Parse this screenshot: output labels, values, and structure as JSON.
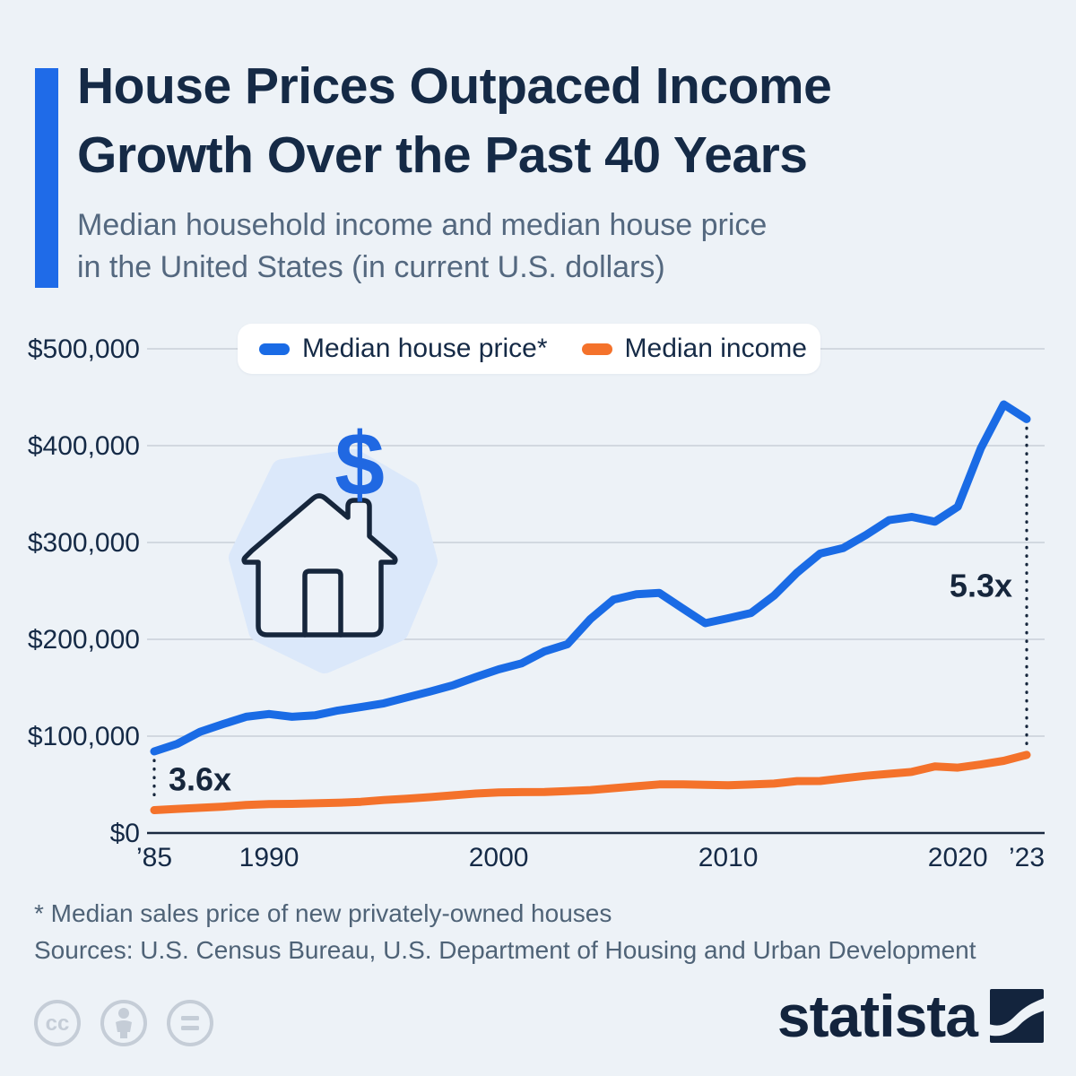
{
  "header": {
    "title_line1": "House Prices Outpaced Income",
    "title_line2": "Growth Over the Past 40 Years",
    "subtitle_line1": "Median household income and median house price",
    "subtitle_line2": "in the United States (in current U.S. dollars)"
  },
  "legend": {
    "items": [
      {
        "label": "Median house price*",
        "color": "#1a6be5"
      },
      {
        "label": "Median income",
        "color": "#f4722b"
      }
    ]
  },
  "decor": {
    "dollar_glyph": "$"
  },
  "chart_data": {
    "type": "line",
    "x": [
      1985,
      1986,
      1987,
      1988,
      1989,
      1990,
      1991,
      1992,
      1993,
      1994,
      1995,
      1996,
      1997,
      1998,
      1999,
      2000,
      2001,
      2002,
      2003,
      2004,
      2005,
      2006,
      2007,
      2008,
      2009,
      2010,
      2011,
      2012,
      2013,
      2014,
      2015,
      2016,
      2017,
      2018,
      2019,
      2020,
      2021,
      2022,
      2023
    ],
    "series": [
      {
        "name": "Median house price",
        "color": "#1a6be5",
        "values": [
          84300,
          92000,
          104500,
          112500,
          120000,
          122900,
          120000,
          121500,
          126500,
          130000,
          133900,
          140000,
          146000,
          152500,
          161000,
          169000,
          175200,
          187600,
          195000,
          221000,
          240900,
          246500,
          247900,
          232100,
          216700,
          221800,
          227200,
          245200,
          268900,
          288500,
          294200,
          307800,
          323100,
          326400,
          321500,
          336900,
          397100,
          442600,
          427400
        ]
      },
      {
        "name": "Median income",
        "color": "#f4722b",
        "values": [
          23620,
          24900,
          26060,
          27230,
          28910,
          29940,
          30130,
          30640,
          31240,
          32260,
          34080,
          35490,
          37010,
          38890,
          40700,
          41990,
          42230,
          42410,
          43320,
          44330,
          46330,
          48200,
          50230,
          50300,
          49780,
          49280,
          50050,
          51020,
          53590,
          53660,
          56520,
          59040,
          61140,
          63180,
          68700,
          67520,
          70780,
          74580,
          80610
        ]
      }
    ],
    "xlim": [
      1985,
      2023
    ],
    "ylim": [
      0,
      500000
    ],
    "y_step": 100000,
    "y_tick_labels": [
      "$0",
      "$100,000",
      "$200,000",
      "$300,000",
      "$400,000",
      "$500,000"
    ],
    "x_ticks": [
      {
        "year": 1985,
        "label": "’85"
      },
      {
        "year": 1990,
        "label": "1990"
      },
      {
        "year": 2000,
        "label": "2000"
      },
      {
        "year": 2010,
        "label": "2010"
      },
      {
        "year": 2020,
        "label": "2020"
      },
      {
        "year": 2023,
        "label": "’23"
      }
    ],
    "annotations": [
      {
        "year": 1985,
        "label": "3.6x",
        "text_side": "right"
      },
      {
        "year": 2023,
        "label": "5.3x",
        "text_side": "left"
      }
    ],
    "grid": true,
    "legend_position": "top"
  },
  "footer": {
    "note": "* Median sales price of new privately-owned houses",
    "sources": "Sources: U.S. Census Bureau, U.S. Department of Housing and Urban Development",
    "brand": "statista"
  },
  "colors": {
    "accent_bar": "#1f6be8",
    "navy": "#152a46",
    "axis": "#1b2940",
    "gridline": "#c9cfd8",
    "background": "#edf2f7",
    "blob": "#dbe8fa",
    "dollar": "#2068e2"
  }
}
